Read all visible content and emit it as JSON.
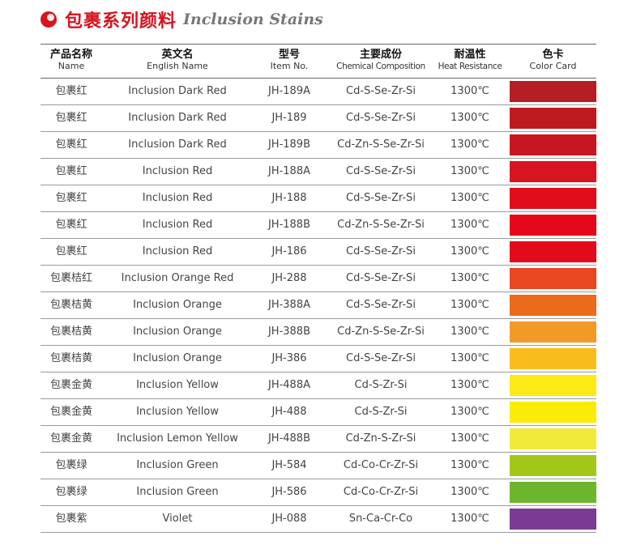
{
  "title": {
    "cn": "包裹系列颜料",
    "en": "Inclusion Stains",
    "accent": "#d7141f"
  },
  "headers": [
    {
      "cn": "产品名称",
      "en": "Name"
    },
    {
      "cn": "英文名",
      "en": "English Name"
    },
    {
      "cn": "型号",
      "en": "Item No."
    },
    {
      "cn": "主要成份",
      "en": "Chemical Composition"
    },
    {
      "cn": "耐温性",
      "en": "Heat Resistance"
    },
    {
      "cn": "色卡",
      "en": "Color Card"
    }
  ],
  "rows": [
    {
      "name": "包裹红",
      "english": "Inclusion Dark Red",
      "item": "JH-189A",
      "composition": "Cd-S-Se-Zr-Si",
      "heat": "1300℃",
      "color": "#b51e22"
    },
    {
      "name": "包裹红",
      "english": "Inclusion Dark Red",
      "item": "JH-189",
      "composition": "Cd-S-Se-Zr-Si",
      "heat": "1300℃",
      "color": "#bd1a20"
    },
    {
      "name": "包裹红",
      "english": "Inclusion Dark Red",
      "item": "JH-189B",
      "composition": "Cd-Zn-S-Se-Zr-Si",
      "heat": "1300℃",
      "color": "#c7161f"
    },
    {
      "name": "包裹红",
      "english": "Inclusion Red",
      "item": "JH-188A",
      "composition": "Cd-S-Se-Zr-Si",
      "heat": "1300℃",
      "color": "#d7141f"
    },
    {
      "name": "包裹红",
      "english": "Inclusion Red",
      "item": "JH-188",
      "composition": "Cd-S-Se-Zr-Si",
      "heat": "1300℃",
      "color": "#e10d1b"
    },
    {
      "name": "包裹红",
      "english": "Inclusion Red",
      "item": "JH-188B",
      "composition": "Cd-Zn-S-Se-Zr-Si",
      "heat": "1300℃",
      "color": "#e4081a"
    },
    {
      "name": "包裹红",
      "english": "Inclusion Red",
      "item": "JH-186",
      "composition": "Cd-S-Se-Zr-Si",
      "heat": "1300℃",
      "color": "#e30b1b"
    },
    {
      "name": "包裹桔红",
      "english": "Inclusion Orange Red",
      "item": "JH-288",
      "composition": "Cd-S-Se-Zr-Si",
      "heat": "1300℃",
      "color": "#e84721"
    },
    {
      "name": "包裹桔黄",
      "english": "Inclusion Orange",
      "item": "JH-388A",
      "composition": "Cd-S-Se-Zr-Si",
      "heat": "1300℃",
      "color": "#ec6a1c"
    },
    {
      "name": "包裹桔黄",
      "english": "Inclusion Orange",
      "item": "JH-388B",
      "composition": "Cd-Zn-S-Se-Zr-Si",
      "heat": "1300℃",
      "color": "#f29a28"
    },
    {
      "name": "包裹桔黄",
      "english": "Inclusion Orange",
      "item": "JH-386",
      "composition": "Cd-S-Se-Zr-Si",
      "heat": "1300℃",
      "color": "#f8bd1d"
    },
    {
      "name": "包裹金黄",
      "english": "Inclusion Yellow",
      "item": "JH-488A",
      "composition": "Cd-S-Zr-Si",
      "heat": "1300℃",
      "color": "#fde915"
    },
    {
      "name": "包裹金黄",
      "english": "Inclusion Yellow",
      "item": "JH-488",
      "composition": "Cd-S-Zr-Si",
      "heat": "1300℃",
      "color": "#faec08"
    },
    {
      "name": "包裹金黄",
      "english": "Inclusion Lemon Yellow",
      "item": "JH-488B",
      "composition": "Cd-Zn-S-Zr-Si",
      "heat": "1300℃",
      "color": "#f2ea3a"
    },
    {
      "name": "包裹绿",
      "english": "Inclusion Green",
      "item": "JH-584",
      "composition": "Cd-Co-Cr-Zr-Si",
      "heat": "1300℃",
      "color": "#a3c719"
    },
    {
      "name": "包裹绿",
      "english": "Inclusion Green",
      "item": "JH-586",
      "composition": "Cd-Co-Cr-Zr-Si",
      "heat": "1300℃",
      "color": "#6db52c"
    },
    {
      "name": "包裹紫",
      "english": "Violet",
      "item": "JH-088",
      "composition": "Sn-Ca-Cr-Co",
      "heat": "1300℃",
      "color": "#7b3a93"
    }
  ]
}
